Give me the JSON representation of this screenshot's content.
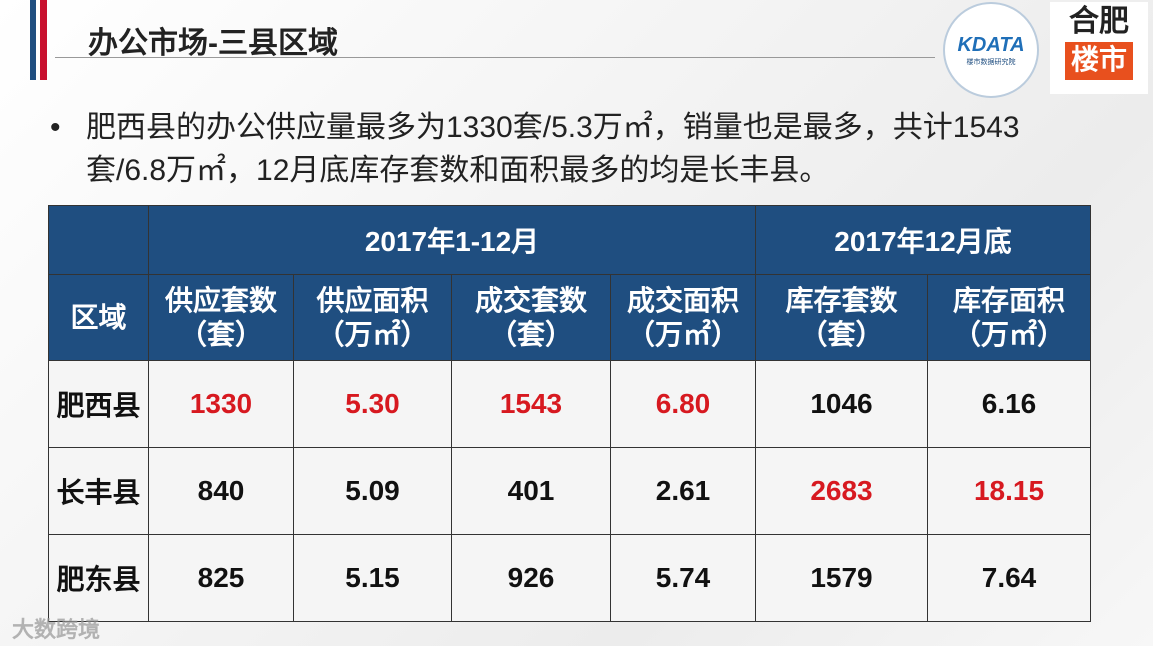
{
  "header": {
    "title": "办公市场-三县区域",
    "logo_left": {
      "brand": "KDATA",
      "subtitle": "楼市数据研究院"
    },
    "logo_right": [
      "合肥",
      "楼市"
    ]
  },
  "bullet": "肥西县的办公供应量最多为1330套/5.3万㎡，销量也是最多，共计1543套/6.8万㎡，12月底库存套数和面积最多的均是长丰县。",
  "table": {
    "group_headers": [
      "2017年1-12月",
      "2017年12月底"
    ],
    "columns": [
      [
        "区域"
      ],
      [
        "供应套数",
        "（套）"
      ],
      [
        "供应面积",
        "（万㎡）"
      ],
      [
        "成交套数",
        "（套）"
      ],
      [
        "成交面积",
        "（万㎡）"
      ],
      [
        "库存套数",
        "（套）"
      ],
      [
        "库存面积",
        "（万㎡）"
      ]
    ],
    "rows": [
      [
        "肥西县",
        "1330",
        "5.30",
        "1543",
        "6.80",
        "1046",
        "6.16"
      ],
      [
        "长丰县",
        "840",
        "5.09",
        "401",
        "2.61",
        "2683",
        "18.15"
      ],
      [
        "肥东县",
        "825",
        "5.15",
        "926",
        "5.74",
        "1579",
        "7.64"
      ]
    ]
  },
  "watermark": "大数跨境"
}
